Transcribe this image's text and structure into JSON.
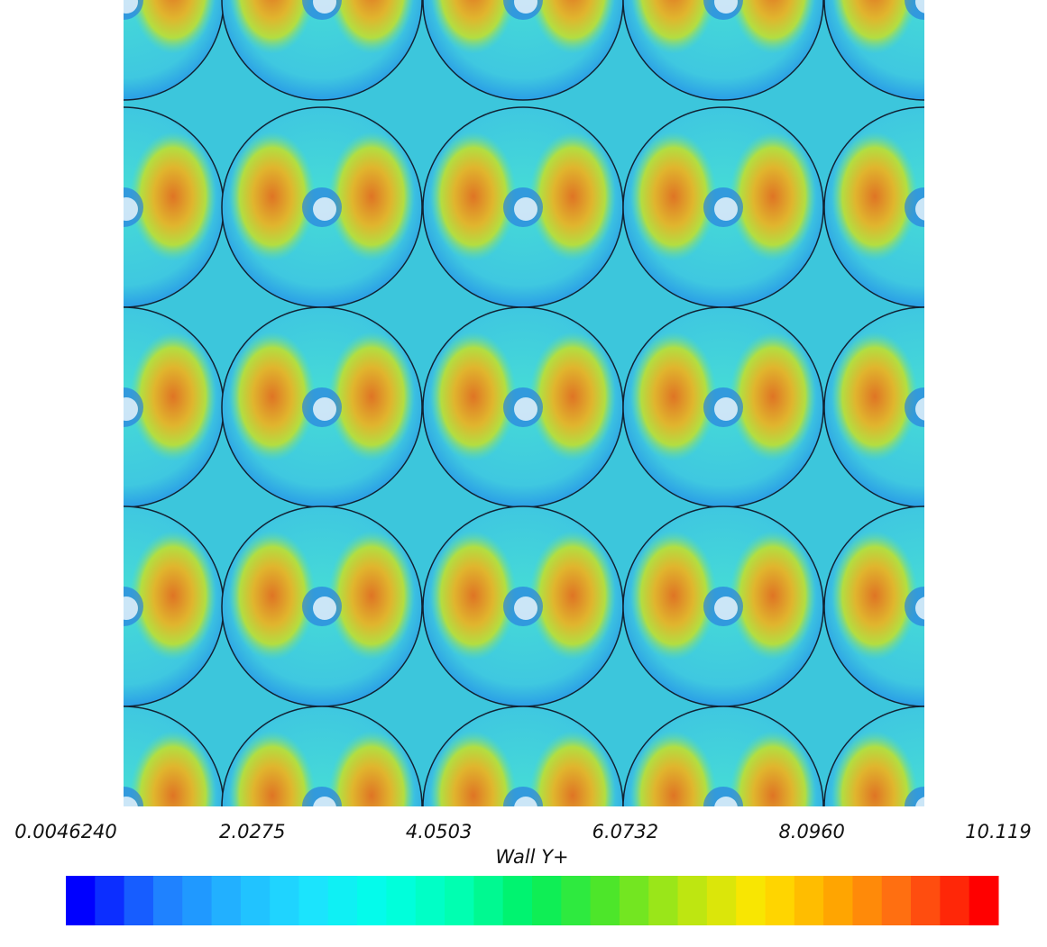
{
  "colorbar": {
    "title": "Wall Y+",
    "range": [
      0.004624,
      10.119
    ],
    "ticks": [
      {
        "value": 0.004624,
        "label": "0.0046240"
      },
      2.0275,
      4.0503,
      6.0732,
      {
        "value": 8.096,
        "label": "8.0960"
      },
      10.119
    ],
    "colors": [
      "#0000ff",
      "#1e78ff",
      "#22b4ff",
      "#1ee1ff",
      "#00ffe8",
      "#00ffb4",
      "#00f060",
      "#50e628",
      "#b4e614",
      "#ffe600",
      "#ffaa00",
      "#ff6414",
      "#ff0000"
    ],
    "bands": 32
  }
}
